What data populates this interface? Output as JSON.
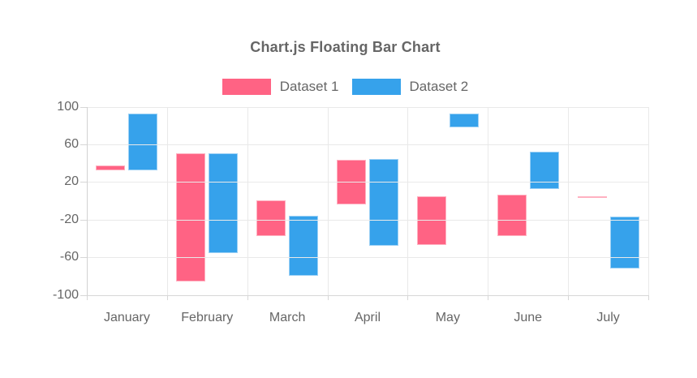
{
  "page": {
    "background": "#ffffff"
  },
  "chart_data": {
    "type": "bar",
    "variant": "floating",
    "title": "Chart.js Floating Bar Chart",
    "categories": [
      "January",
      "February",
      "March",
      "April",
      "May",
      "June",
      "July"
    ],
    "series": [
      {
        "name": "Dataset 1",
        "color": "#FF6384",
        "border_color": "#FFB1C1",
        "values": [
          [
            32,
            37
          ],
          [
            -86,
            50
          ],
          [
            -38,
            0
          ],
          [
            -4,
            43
          ],
          [
            -47,
            4
          ],
          [
            -38,
            6
          ],
          [
            3,
            4
          ]
        ]
      },
      {
        "name": "Dataset 2",
        "color": "#36A2EB",
        "border_color": "#9BD0F5",
        "values": [
          [
            32,
            92
          ],
          [
            -56,
            50
          ],
          [
            -80,
            -16
          ],
          [
            -48,
            44
          ],
          [
            78,
            92
          ],
          [
            12,
            52
          ],
          [
            -72,
            -17
          ]
        ]
      }
    ],
    "xlabel": "",
    "ylabel": "",
    "ylim": [
      -100,
      100
    ],
    "yticks": [
      100,
      60,
      20,
      -20,
      -60,
      -100
    ],
    "grid": true,
    "legend_position": "top",
    "text_color": "#666666",
    "grid_color": "#e9e9e9"
  }
}
